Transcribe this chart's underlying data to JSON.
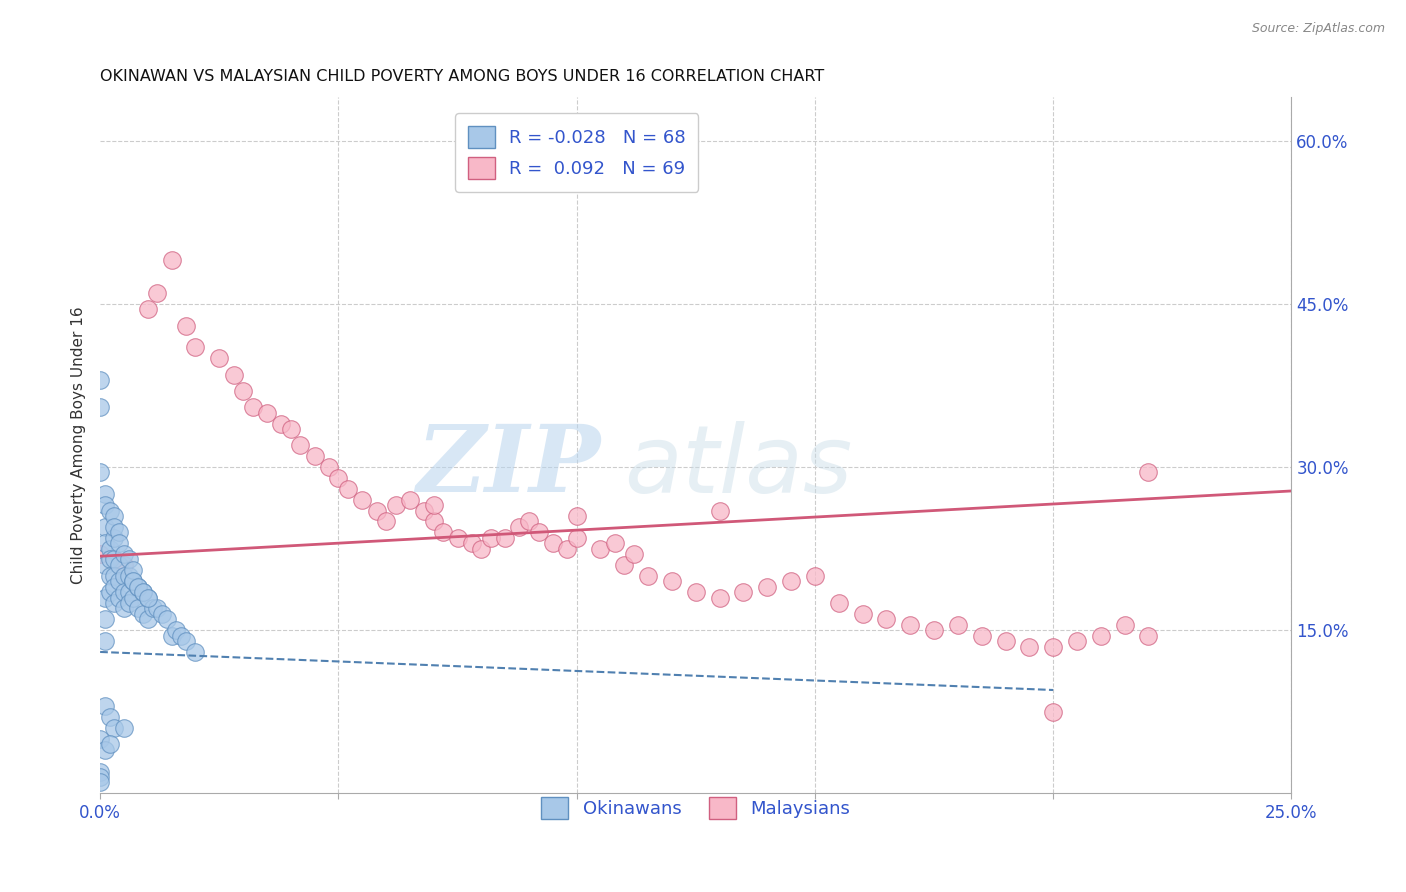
{
  "title": "OKINAWAN VS MALAYSIAN CHILD POVERTY AMONG BOYS UNDER 16 CORRELATION CHART",
  "source": "Source: ZipAtlas.com",
  "ylabel_left": "Child Poverty Among Boys Under 16",
  "xlim": [
    0.0,
    0.25
  ],
  "ylim": [
    0.0,
    0.64
  ],
  "xticks": [
    0.0,
    0.05,
    0.1,
    0.15,
    0.2,
    0.25
  ],
  "xtick_labels": [
    "0.0%",
    "",
    "",
    "",
    "",
    "25.0%"
  ],
  "yticks_right": [
    0.15,
    0.3,
    0.45,
    0.6
  ],
  "ytick_labels_right": [
    "15.0%",
    "30.0%",
    "45.0%",
    "60.0%"
  ],
  "legend_blue_r": "-0.028",
  "legend_blue_n": "68",
  "legend_pink_r": "0.092",
  "legend_pink_n": "69",
  "blue_color": "#a8c8e8",
  "blue_edge": "#6090c0",
  "pink_color": "#f8b8c8",
  "pink_edge": "#d06080",
  "trend_blue_color": "#5080b0",
  "trend_pink_color": "#d05878",
  "legend_text_color": "#3355cc",
  "watermark_zip": "ZIP",
  "watermark_atlas": "atlas",
  "okinawan_x": [
    0.0,
    0.0,
    0.0,
    0.0,
    0.0,
    0.001,
    0.001,
    0.001,
    0.001,
    0.001,
    0.001,
    0.001,
    0.002,
    0.002,
    0.002,
    0.002,
    0.002,
    0.003,
    0.003,
    0.003,
    0.003,
    0.003,
    0.003,
    0.004,
    0.004,
    0.004,
    0.005,
    0.005,
    0.005,
    0.005,
    0.006,
    0.006,
    0.006,
    0.007,
    0.007,
    0.008,
    0.008,
    0.009,
    0.009,
    0.01,
    0.01,
    0.011,
    0.012,
    0.013,
    0.014,
    0.015,
    0.016,
    0.017,
    0.018,
    0.02,
    0.0,
    0.001,
    0.001,
    0.002,
    0.003,
    0.003,
    0.004,
    0.004,
    0.005,
    0.006,
    0.007,
    0.007,
    0.008,
    0.009,
    0.01,
    0.0,
    0.001,
    0.002
  ],
  "okinawan_y": [
    0.38,
    0.355,
    0.02,
    0.015,
    0.01,
    0.245,
    0.23,
    0.21,
    0.18,
    0.16,
    0.14,
    0.08,
    0.225,
    0.215,
    0.2,
    0.185,
    0.07,
    0.235,
    0.215,
    0.2,
    0.19,
    0.175,
    0.06,
    0.21,
    0.195,
    0.18,
    0.2,
    0.185,
    0.17,
    0.06,
    0.2,
    0.185,
    0.175,
    0.195,
    0.18,
    0.19,
    0.17,
    0.185,
    0.165,
    0.18,
    0.16,
    0.17,
    0.17,
    0.165,
    0.16,
    0.145,
    0.15,
    0.145,
    0.14,
    0.13,
    0.295,
    0.275,
    0.265,
    0.26,
    0.255,
    0.245,
    0.24,
    0.23,
    0.22,
    0.215,
    0.205,
    0.195,
    0.19,
    0.185,
    0.18,
    0.05,
    0.04,
    0.045
  ],
  "malaysian_x": [
    0.0,
    0.005,
    0.01,
    0.012,
    0.015,
    0.018,
    0.02,
    0.025,
    0.028,
    0.03,
    0.032,
    0.035,
    0.038,
    0.04,
    0.042,
    0.045,
    0.048,
    0.05,
    0.052,
    0.055,
    0.058,
    0.06,
    0.062,
    0.065,
    0.068,
    0.07,
    0.072,
    0.075,
    0.078,
    0.08,
    0.082,
    0.085,
    0.088,
    0.09,
    0.092,
    0.095,
    0.098,
    0.1,
    0.105,
    0.108,
    0.11,
    0.112,
    0.115,
    0.12,
    0.125,
    0.13,
    0.135,
    0.14,
    0.145,
    0.15,
    0.155,
    0.16,
    0.165,
    0.17,
    0.175,
    0.18,
    0.185,
    0.19,
    0.195,
    0.2,
    0.205,
    0.21,
    0.215,
    0.22,
    0.2,
    0.07,
    0.1,
    0.13,
    0.22
  ],
  "malaysian_y": [
    0.22,
    0.21,
    0.445,
    0.46,
    0.49,
    0.43,
    0.41,
    0.4,
    0.385,
    0.37,
    0.355,
    0.35,
    0.34,
    0.335,
    0.32,
    0.31,
    0.3,
    0.29,
    0.28,
    0.27,
    0.26,
    0.25,
    0.265,
    0.27,
    0.26,
    0.25,
    0.24,
    0.235,
    0.23,
    0.225,
    0.235,
    0.235,
    0.245,
    0.25,
    0.24,
    0.23,
    0.225,
    0.235,
    0.225,
    0.23,
    0.21,
    0.22,
    0.2,
    0.195,
    0.185,
    0.18,
    0.185,
    0.19,
    0.195,
    0.2,
    0.175,
    0.165,
    0.16,
    0.155,
    0.15,
    0.155,
    0.145,
    0.14,
    0.135,
    0.135,
    0.14,
    0.145,
    0.155,
    0.145,
    0.075,
    0.265,
    0.255,
    0.26,
    0.295
  ],
  "blue_trend_x0": 0.0,
  "blue_trend_y0": 0.13,
  "blue_trend_x1": 0.2,
  "blue_trend_y1": 0.095,
  "pink_trend_x0": 0.0,
  "pink_trend_y0": 0.218,
  "pink_trend_x1": 0.25,
  "pink_trend_y1": 0.278
}
